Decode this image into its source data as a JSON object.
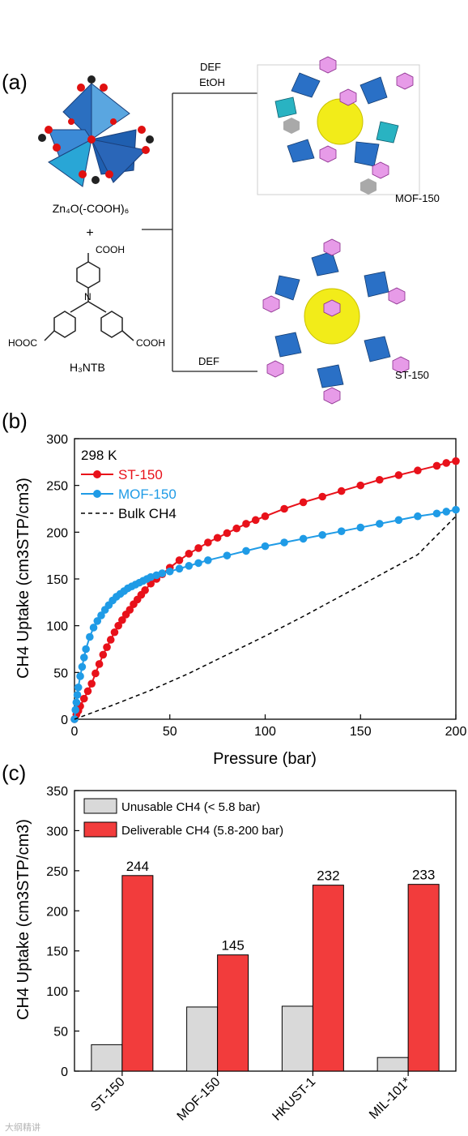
{
  "panel_a": {
    "label": "(a)",
    "cluster_label": "Zn₄O(-COOH)₆",
    "plus": "+",
    "linker_label": "H₃NTB",
    "linker_groups": {
      "top": "COOH",
      "left": "HOOC",
      "right": "COOH",
      "center": "N"
    },
    "route_top_line1": "DEF",
    "route_top_line2": "EtOH",
    "route_bottom": "DEF",
    "product_top": "MOF-150",
    "product_bottom": "ST-150"
  },
  "panel_b": {
    "label": "(b)",
    "temperature": "298 K",
    "legend": [
      "ST-150",
      "MOF-150",
      "Bulk CH4"
    ],
    "xlabel": "Pressure (bar)",
    "ylabel": "CH4 Uptake (cm3STP/cm3)",
    "xticks": [
      "0",
      "50",
      "100",
      "150",
      "200"
    ],
    "yticks": [
      "0",
      "50",
      "100",
      "150",
      "200",
      "250",
      "300"
    ]
  },
  "panel_c": {
    "label": "(c)",
    "legend": [
      "Unusable CH4 (< 5.8 bar)",
      "Deliverable CH4 (5.8-200 bar)"
    ],
    "ylabel": "CH4 Uptake (cm3STP/cm3)",
    "yticks": [
      "0",
      "50",
      "100",
      "150",
      "200",
      "250",
      "300",
      "350"
    ],
    "categories": [
      "ST-150",
      "MOF-150",
      "HKUST-1",
      "MIL-101*"
    ],
    "bar_labels": [
      "244",
      "145",
      "232",
      "233"
    ]
  },
  "watermark": "大纲精讲",
  "colors": {
    "st150": "#e8111a",
    "mof150": "#1f9be6",
    "unusable": "#d9d9d9",
    "deliverable": "#f23c3c"
  },
  "chart_data": [
    {
      "type": "line",
      "xlabel": "Pressure (bar)",
      "ylabel": "CH4 Uptake (cm3STP/cm3)",
      "xlim": [
        0,
        200
      ],
      "ylim": [
        0,
        300
      ],
      "legend_position": "top-left",
      "series": [
        {
          "name": "ST-150",
          "color": "#e8111a",
          "x": [
            0,
            1,
            2,
            3,
            5,
            7,
            9,
            11,
            13,
            15,
            17,
            19,
            21,
            23,
            25,
            27,
            29,
            31,
            33,
            35,
            37,
            40,
            43,
            46,
            50,
            55,
            60,
            65,
            70,
            75,
            80,
            85,
            90,
            95,
            100,
            110,
            120,
            130,
            140,
            150,
            160,
            170,
            180,
            190,
            195,
            200
          ],
          "y": [
            0,
            5,
            9,
            14,
            22,
            30,
            38,
            49,
            59,
            69,
            77,
            85,
            93,
            100,
            106,
            112,
            117,
            123,
            128,
            133,
            138,
            145,
            150,
            155,
            162,
            170,
            177,
            183,
            189,
            194,
            199,
            204,
            209,
            213,
            217,
            225,
            232,
            238,
            244,
            250,
            256,
            261,
            266,
            271,
            274,
            276
          ]
        },
        {
          "name": "MOF-150",
          "color": "#1f9be6",
          "x": [
            0,
            0.5,
            1,
            1.5,
            2,
            3,
            4,
            5,
            6,
            8,
            10,
            12,
            14,
            16,
            18,
            20,
            22,
            24,
            26,
            28,
            30,
            32,
            34,
            36,
            38,
            40,
            43,
            46,
            50,
            55,
            60,
            65,
            70,
            80,
            90,
            100,
            110,
            120,
            130,
            140,
            150,
            160,
            170,
            180,
            190,
            195,
            200
          ],
          "y": [
            0,
            10,
            18,
            26,
            34,
            46,
            56,
            66,
            75,
            88,
            98,
            105,
            111,
            117,
            122,
            127,
            131,
            134,
            137,
            140,
            142,
            144,
            146,
            148,
            150,
            152,
            154,
            156,
            158,
            161,
            164,
            167,
            170,
            175,
            180,
            185,
            189,
            193,
            197,
            201,
            205,
            209,
            213,
            217,
            220,
            222,
            224
          ]
        },
        {
          "name": "Bulk CH4",
          "color": "#000000",
          "x": [
            0,
            20,
            40,
            60,
            80,
            100,
            120,
            140,
            160,
            180,
            200
          ],
          "y": [
            0,
            15,
            31,
            49,
            69,
            89,
            110,
            132,
            154,
            176,
            217
          ]
        }
      ]
    },
    {
      "type": "bar",
      "ylabel": "CH4 Uptake (cm3STP/cm3)",
      "ylim": [
        0,
        350
      ],
      "legend_position": "top-left",
      "categories": [
        "ST-150",
        "MOF-150",
        "HKUST-1",
        "MIL-101*"
      ],
      "series": [
        {
          "name": "Unusable CH4 (< 5.8 bar)",
          "color": "#d9d9d9",
          "values": [
            33,
            80,
            81,
            17
          ]
        },
        {
          "name": "Deliverable CH4 (5.8-200 bar)",
          "color": "#f23c3c",
          "values": [
            244,
            145,
            232,
            233
          ]
        }
      ]
    }
  ]
}
